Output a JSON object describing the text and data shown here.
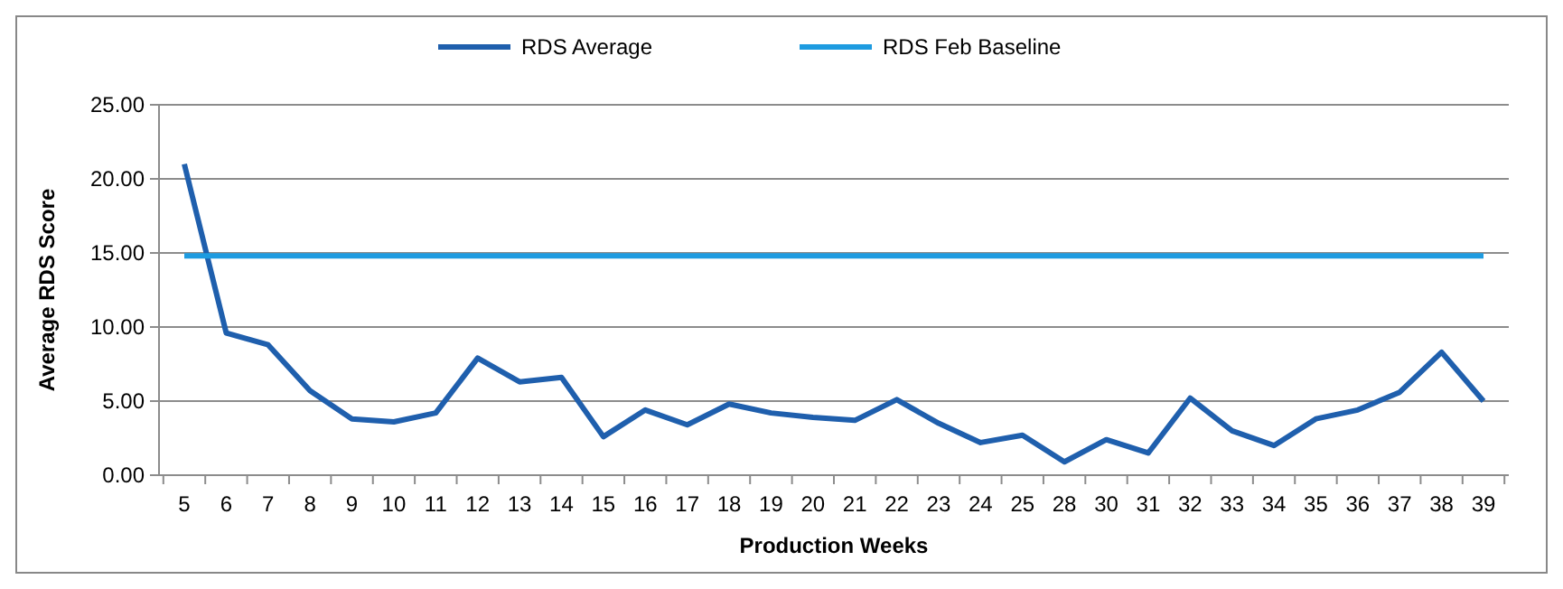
{
  "chart_data": {
    "type": "line",
    "xlabel": "Production Weeks",
    "ylabel": "Average RDS Score",
    "categories": [
      "5",
      "6",
      "7",
      "8",
      "9",
      "10",
      "11",
      "12",
      "13",
      "14",
      "15",
      "16",
      "17",
      "18",
      "19",
      "20",
      "21",
      "22",
      "23",
      "24",
      "25",
      "28",
      "30",
      "31",
      "32",
      "33",
      "34",
      "35",
      "36",
      "37",
      "38",
      "39"
    ],
    "series": [
      {
        "name": "RDS Average",
        "color": "#1f5fad",
        "values": [
          21.0,
          9.6,
          8.8,
          5.7,
          3.8,
          3.6,
          4.2,
          7.9,
          6.3,
          6.6,
          2.6,
          4.4,
          3.4,
          4.8,
          4.2,
          3.9,
          3.7,
          5.1,
          3.5,
          2.2,
          2.7,
          0.9,
          2.4,
          1.5,
          5.2,
          3.0,
          2.0,
          3.8,
          4.4,
          5.6,
          8.3,
          5.0
        ]
      },
      {
        "name": "RDS Feb Baseline",
        "color": "#1e9be0",
        "values": [
          14.8,
          14.8,
          14.8,
          14.8,
          14.8,
          14.8,
          14.8,
          14.8,
          14.8,
          14.8,
          14.8,
          14.8,
          14.8,
          14.8,
          14.8,
          14.8,
          14.8,
          14.8,
          14.8,
          14.8,
          14.8,
          14.8,
          14.8,
          14.8,
          14.8,
          14.8,
          14.8,
          14.8,
          14.8,
          14.8,
          14.8,
          14.8
        ]
      }
    ],
    "ylim": [
      0,
      25
    ],
    "yticks": [
      {
        "value": 0,
        "label": "0.00"
      },
      {
        "value": 5,
        "label": "5.00"
      },
      {
        "value": 10,
        "label": "10.00"
      },
      {
        "value": 15,
        "label": "15.00"
      },
      {
        "value": 20,
        "label": "20.00"
      },
      {
        "value": 25,
        "label": "25.00"
      }
    ],
    "grid": "y",
    "legend": "top",
    "marker": "none",
    "line_style": "solid"
  }
}
